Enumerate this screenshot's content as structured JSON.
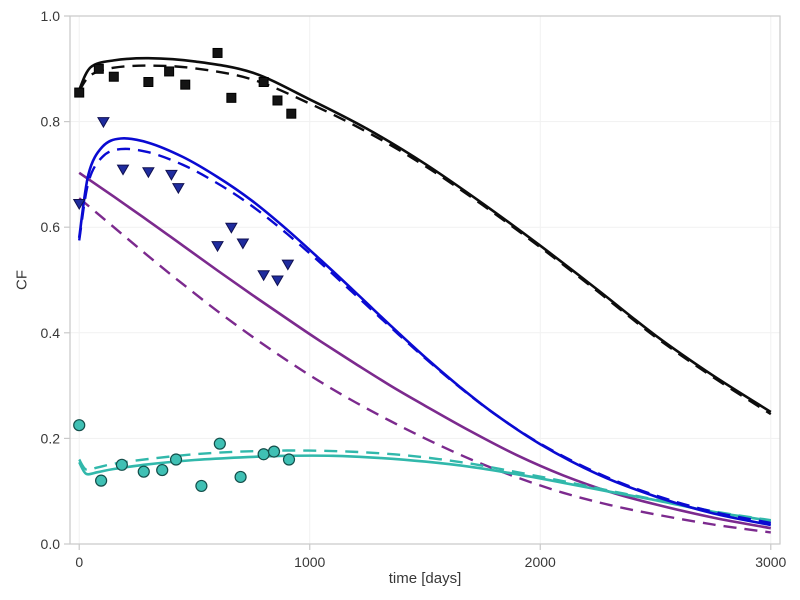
{
  "figure": {
    "background": "#ffffff"
  },
  "chart_data": {
    "type": "line",
    "title": "",
    "xlabel": "time [days]",
    "ylabel": "CF",
    "xlim": [
      -40,
      3040
    ],
    "ylim": [
      0,
      1
    ],
    "xticks": [
      0,
      1000,
      2000,
      3000
    ],
    "xtick_labels": [
      "0",
      "1000",
      "2000",
      "3000"
    ],
    "yticks": [
      0,
      0.2,
      0.4,
      0.6,
      0.8,
      1.0
    ],
    "ytick_labels": [
      "0.0",
      "0.2",
      "0.4",
      "0.6",
      "0.8",
      "1.0"
    ],
    "grid": true,
    "grid_color": "#f1f1f1",
    "axis_color": "#c9c9c9",
    "tick_label_color": "#383838",
    "legend": "none",
    "line_series": [
      {
        "name": "purple-dashed",
        "color": "#7c2a8e",
        "style": "dash",
        "x": [
          0,
          150,
          300,
          450,
          600,
          750,
          900,
          1050,
          1200,
          1350,
          1500,
          1700,
          1900,
          2100,
          2300,
          2500,
          2750,
          3000
        ],
        "y": [
          0.655,
          0.6,
          0.545,
          0.492,
          0.441,
          0.393,
          0.348,
          0.306,
          0.268,
          0.233,
          0.2,
          0.16,
          0.126,
          0.097,
          0.074,
          0.056,
          0.037,
          0.022
        ]
      },
      {
        "name": "purple-solid",
        "color": "#7c2a8e",
        "style": "solid",
        "x": [
          0,
          150,
          300,
          450,
          600,
          750,
          900,
          1050,
          1200,
          1350,
          1500,
          1700,
          1900,
          2100,
          2300,
          2500,
          2750,
          3000
        ],
        "y": [
          0.703,
          0.658,
          0.612,
          0.565,
          0.518,
          0.472,
          0.427,
          0.383,
          0.341,
          0.3,
          0.262,
          0.213,
          0.168,
          0.13,
          0.099,
          0.075,
          0.05,
          0.03
        ]
      },
      {
        "name": "teal-dashed",
        "color": "#31b8ab",
        "style": "dash",
        "x": [
          0,
          30,
          80,
          150,
          300,
          500,
          700,
          900,
          1100,
          1300,
          1500,
          1700,
          1900,
          2100,
          2300,
          2500,
          2750,
          3000
        ],
        "y": [
          0.16,
          0.141,
          0.145,
          0.152,
          0.161,
          0.17,
          0.175,
          0.177,
          0.176,
          0.172,
          0.164,
          0.152,
          0.136,
          0.119,
          0.101,
          0.084,
          0.062,
          0.045
        ]
      },
      {
        "name": "teal-solid",
        "color": "#31b8ab",
        "style": "solid",
        "x": [
          0,
          30,
          80,
          150,
          300,
          500,
          700,
          900,
          1100,
          1300,
          1500,
          1700,
          1900,
          2100,
          2300,
          2500,
          2750,
          3000
        ],
        "y": [
          0.155,
          0.133,
          0.136,
          0.142,
          0.151,
          0.159,
          0.164,
          0.167,
          0.167,
          0.163,
          0.156,
          0.146,
          0.132,
          0.116,
          0.099,
          0.083,
          0.061,
          0.044
        ]
      },
      {
        "name": "blue-dashed",
        "color": "#0a0ad2",
        "style": "dash",
        "x": [
          0,
          40,
          100,
          180,
          300,
          450,
          600,
          750,
          900,
          1050,
          1200,
          1350,
          1500,
          1650,
          1800,
          2000,
          2250,
          2500,
          2750,
          3000
        ],
        "y": [
          0.575,
          0.685,
          0.733,
          0.748,
          0.742,
          0.718,
          0.683,
          0.64,
          0.588,
          0.531,
          0.471,
          0.411,
          0.352,
          0.297,
          0.247,
          0.19,
          0.134,
          0.092,
          0.061,
          0.04
        ]
      },
      {
        "name": "blue-solid",
        "color": "#0a0ad2",
        "style": "solid",
        "x": [
          0,
          40,
          100,
          180,
          300,
          450,
          600,
          750,
          900,
          1050,
          1200,
          1350,
          1500,
          1650,
          1800,
          2000,
          2250,
          2500,
          2750,
          3000
        ],
        "y": [
          0.58,
          0.7,
          0.752,
          0.768,
          0.76,
          0.733,
          0.695,
          0.65,
          0.596,
          0.537,
          0.476,
          0.414,
          0.354,
          0.298,
          0.247,
          0.189,
          0.132,
          0.09,
          0.058,
          0.036
        ]
      },
      {
        "name": "black-dashed",
        "color": "#0d0d0d",
        "style": "dash",
        "x": [
          0,
          50,
          150,
          300,
          500,
          750,
          1000,
          1250,
          1500,
          1750,
          2000,
          2250,
          2500,
          2750,
          3000
        ],
        "y": [
          0.858,
          0.888,
          0.902,
          0.906,
          0.901,
          0.88,
          0.834,
          0.78,
          0.716,
          0.642,
          0.562,
          0.478,
          0.392,
          0.316,
          0.246
        ]
      },
      {
        "name": "black-solid",
        "color": "#0d0d0d",
        "style": "solid",
        "x": [
          0,
          50,
          150,
          300,
          500,
          750,
          1000,
          1250,
          1500,
          1750,
          2000,
          2250,
          2500,
          2750,
          3000
        ],
        "y": [
          0.86,
          0.903,
          0.916,
          0.92,
          0.914,
          0.893,
          0.842,
          0.786,
          0.72,
          0.645,
          0.565,
          0.481,
          0.395,
          0.319,
          0.25
        ]
      }
    ],
    "scatter_series": [
      {
        "name": "black-squares",
        "marker": "square",
        "fill": "#141414",
        "edge": "#000000",
        "x": [
          0,
          85,
          150,
          300,
          390,
          460,
          600,
          660,
          800,
          860,
          920
        ],
        "y": [
          0.855,
          0.9,
          0.885,
          0.875,
          0.895,
          0.87,
          0.93,
          0.845,
          0.875,
          0.84,
          0.815
        ]
      },
      {
        "name": "blue-triangles",
        "marker": "triangle-down",
        "fill": "#1f2c9e",
        "edge": "#101050",
        "x": [
          0,
          105,
          190,
          300,
          400,
          430,
          600,
          660,
          710,
          800,
          860,
          905
        ],
        "y": [
          0.645,
          0.8,
          0.71,
          0.705,
          0.7,
          0.675,
          0.565,
          0.6,
          0.57,
          0.51,
          0.5,
          0.53
        ]
      },
      {
        "name": "teal-circles",
        "marker": "circle",
        "fill": "#3fc0b4",
        "edge": "#134e4a",
        "x": [
          0,
          95,
          185,
          280,
          360,
          420,
          530,
          610,
          700,
          800,
          845,
          910
        ],
        "y": [
          0.225,
          0.12,
          0.15,
          0.137,
          0.14,
          0.16,
          0.11,
          0.19,
          0.127,
          0.17,
          0.175,
          0.16
        ]
      }
    ]
  }
}
